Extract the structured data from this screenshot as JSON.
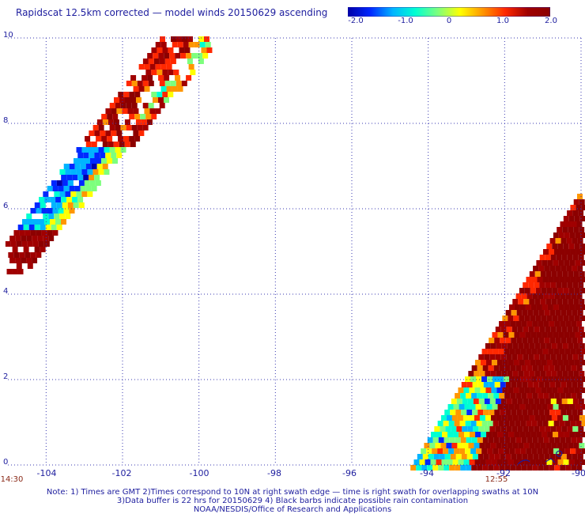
{
  "title": "Rapidscat 12.5km corrected — model winds 20150629 ascending",
  "colorbar": {
    "ticks": [
      "-2.0",
      "-1.0",
      "0",
      "1.0",
      "2.0"
    ],
    "min": -2.0,
    "max": 2.0,
    "colors": [
      "#0000a8",
      "#0028ff",
      "#00b4ff",
      "#00ffd2",
      "#7dff7d",
      "#ffff00",
      "#ff9600",
      "#ff2800",
      "#a00000",
      "#8c0000"
    ]
  },
  "axes": {
    "y_ticks": [
      "10",
      "8",
      "6",
      "4",
      "2",
      "0"
    ],
    "x_ticks": [
      "-104",
      "-102",
      "-100",
      "-98",
      "-96",
      "-94",
      "-92",
      "-90"
    ]
  },
  "time_labels": [
    "14:30",
    "12:55"
  ],
  "notes": [
    "Note: 1) Times are GMT 2)Times correspond to 10N at right swath edge — time is right swath for overlapping swaths at 10N",
    "3)Data buffer is 22 hrs for 20150629 4) Black barbs indicate possible rain contamination",
    "NOAA/NESDIS/Office of Research and Applications"
  ],
  "chart_data": {
    "type": "heatmap",
    "title": "Rapidscat 12.5km corrected — model winds 20150629 ascending",
    "xlim": [
      -105,
      -90
    ],
    "ylim": [
      0,
      10
    ],
    "value_range": [
      -2.0,
      2.0
    ],
    "grid": true,
    "swaths": [
      {
        "lon_range": [
          -105,
          -100.3
        ],
        "lat_range": [
          5.0,
          10.0
        ],
        "values": "mixed -2.0 to 2.0"
      },
      {
        "lon_range": [
          -94.5,
          -90
        ],
        "lat_range": [
          0,
          6.2
        ],
        "values": "mostly 1.0 to 2.0"
      }
    ]
  }
}
